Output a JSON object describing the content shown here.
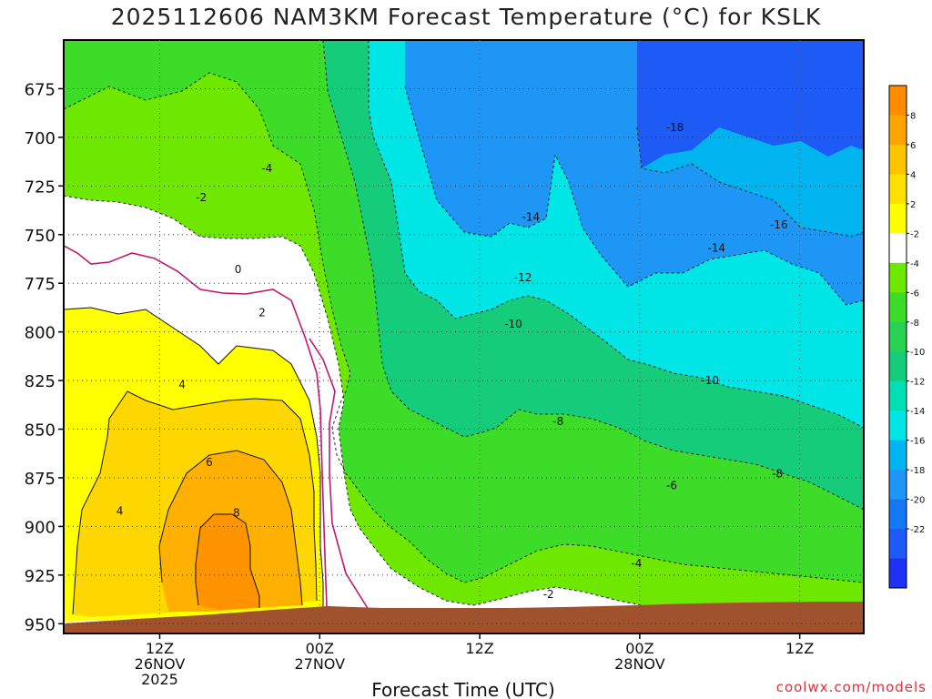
{
  "chart_data": {
    "type": "heatmap",
    "title": "2025112606 NAM3KM Forecast Temperature (°C) for KSLK",
    "xlabel": "Forecast Time (UTC)",
    "ylabel": "",
    "x_range_hours": [
      -6,
      44
    ],
    "y_levels": [
      "675",
      "700",
      "725",
      "750",
      "775",
      "800",
      "825",
      "850",
      "875",
      "900",
      "925",
      "950"
    ],
    "y_levels_num": [
      675,
      700,
      725,
      750,
      775,
      800,
      825,
      850,
      875,
      900,
      925,
      950
    ],
    "ylim": [
      650,
      955
    ],
    "x_ticks": [
      {
        "hour": 0,
        "lines": [
          "12Z",
          "26NOV",
          "2025"
        ]
      },
      {
        "hour": 10,
        "lines": [
          "00Z",
          "27NOV"
        ]
      },
      {
        "hour": 20,
        "lines": [
          "12Z"
        ]
      },
      {
        "hour": 30,
        "lines": [
          "00Z",
          "28NOV"
        ]
      },
      {
        "hour": 40,
        "lines": [
          "12Z"
        ]
      }
    ],
    "colorbar": {
      "labels": [
        "8",
        "6",
        "4",
        "2",
        "-2",
        "-4",
        "-6",
        "-8",
        "-10",
        "-12",
        "-14",
        "-16",
        "-18",
        "-20",
        "-22"
      ],
      "colors": [
        "#ff8c00",
        "#ffa500",
        "#ffc400",
        "#ffe000",
        "#ffff00",
        "#ffffff",
        "#6ee800",
        "#3cdc28",
        "#28d250",
        "#14cc7a",
        "#00e0b4",
        "#00e6e6",
        "#00b4f0",
        "#1e96f5",
        "#1478f5",
        "#1e5af5",
        "#1e32f5"
      ]
    },
    "contour_labels": [
      {
        "text": "-18",
        "hour": 32.2,
        "level": 695
      },
      {
        "text": "-16",
        "hour": 38.7,
        "level": 745
      },
      {
        "text": "-14",
        "hour": 23.2,
        "level": 741
      },
      {
        "text": "-14",
        "hour": 34.8,
        "level": 757
      },
      {
        "text": "-12",
        "hour": 22.7,
        "level": 772
      },
      {
        "text": "-10",
        "hour": 22.1,
        "level": 796
      },
      {
        "text": "-10",
        "hour": 34.4,
        "level": 825
      },
      {
        "text": "-8",
        "hour": 24.9,
        "level": 846
      },
      {
        "text": "-8",
        "hour": 38.6,
        "level": 873
      },
      {
        "text": "-6",
        "hour": 32.0,
        "level": 879
      },
      {
        "text": "-4",
        "hour": 29.8,
        "level": 919
      },
      {
        "text": "-2",
        "hour": 24.3,
        "level": 935
      },
      {
        "text": "-4",
        "hour": 6.7,
        "level": 716
      },
      {
        "text": "-2",
        "hour": 2.6,
        "level": 731
      },
      {
        "text": "0",
        "hour": 4.9,
        "level": 768
      },
      {
        "text": "2",
        "hour": 6.4,
        "level": 790
      },
      {
        "text": "4",
        "hour": 1.4,
        "level": 827
      },
      {
        "text": "6",
        "hour": 3.1,
        "level": 867
      },
      {
        "text": "8",
        "hour": 4.8,
        "level": 893
      },
      {
        "text": "4",
        "hour": -2.5,
        "level": 892
      }
    ]
  },
  "credit": "coolwx.com/models"
}
